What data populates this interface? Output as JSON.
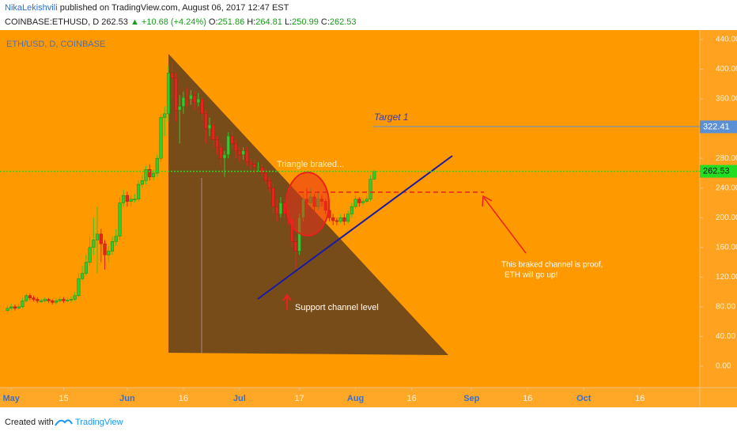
{
  "header": {
    "author": "NikaLekishvili",
    "published": "published on TradingView.com, August 06, 2017 12:47 EST",
    "symbol": "COINBASE:ETHUSD, D",
    "price": "262.53",
    "change": "▲ +10.68 (+4.24%)",
    "o_label": "O:",
    "o": "251.86",
    "h_label": "H:",
    "h": "264.81",
    "l_label": "L:",
    "l": "250.99",
    "c_label": "C:",
    "c": "262.53"
  },
  "footer": {
    "created": "Created with",
    "brand": "TradingView"
  },
  "chart_data": {
    "type": "candlestick",
    "title": "ETH/USD, D, COINBASE",
    "dates": [
      "2017-04-30",
      "2017-05-01",
      "2017-05-02",
      "2017-05-03",
      "2017-05-04",
      "2017-05-05",
      "2017-05-06",
      "2017-05-07",
      "2017-05-08",
      "2017-05-09",
      "2017-05-10",
      "2017-05-11",
      "2017-05-12",
      "2017-05-13",
      "2017-05-14",
      "2017-05-15",
      "2017-05-16",
      "2017-05-17",
      "2017-05-18",
      "2017-05-19",
      "2017-05-20",
      "2017-05-21",
      "2017-05-22",
      "2017-05-23",
      "2017-05-24",
      "2017-05-25",
      "2017-05-26",
      "2017-05-27",
      "2017-05-28",
      "2017-05-29",
      "2017-05-30",
      "2017-05-31",
      "2017-06-01",
      "2017-06-02",
      "2017-06-03",
      "2017-06-04",
      "2017-06-05",
      "2017-06-06",
      "2017-06-07",
      "2017-06-08",
      "2017-06-09",
      "2017-06-10",
      "2017-06-11",
      "2017-06-12",
      "2017-06-13",
      "2017-06-14",
      "2017-06-15",
      "2017-06-16",
      "2017-06-17",
      "2017-06-18",
      "2017-06-19",
      "2017-06-20",
      "2017-06-21",
      "2017-06-22",
      "2017-06-23",
      "2017-06-24",
      "2017-06-25",
      "2017-06-26",
      "2017-06-27",
      "2017-06-28",
      "2017-06-29",
      "2017-06-30",
      "2017-07-01",
      "2017-07-02",
      "2017-07-03",
      "2017-07-04",
      "2017-07-05",
      "2017-07-06",
      "2017-07-07",
      "2017-07-08",
      "2017-07-09",
      "2017-07-10",
      "2017-07-11",
      "2017-07-12",
      "2017-07-13",
      "2017-07-14",
      "2017-07-15",
      "2017-07-16",
      "2017-07-17",
      "2017-07-18",
      "2017-07-19",
      "2017-07-20",
      "2017-07-21",
      "2017-07-22",
      "2017-07-23",
      "2017-07-24",
      "2017-07-25",
      "2017-07-26",
      "2017-07-27",
      "2017-07-28",
      "2017-07-29",
      "2017-07-30",
      "2017-07-31",
      "2017-08-01",
      "2017-08-02",
      "2017-08-03",
      "2017-08-04",
      "2017-08-05",
      "2017-08-06"
    ],
    "open": [
      75,
      78,
      80,
      78,
      80,
      88,
      95,
      92,
      90,
      88,
      88,
      90,
      88,
      86,
      88,
      90,
      88,
      89,
      90,
      95,
      118,
      125,
      140,
      160,
      170,
      178,
      165,
      150,
      155,
      168,
      175,
      220,
      230,
      222,
      225,
      225,
      245,
      250,
      265,
      255,
      260,
      280,
      335,
      340,
      395,
      388,
      345,
      350,
      362,
      360,
      365,
      355,
      360,
      340,
      320,
      325,
      305,
      295,
      280,
      285,
      310,
      300,
      290,
      285,
      290,
      275,
      272,
      268,
      268,
      260,
      250,
      240,
      215,
      205,
      220,
      205,
      198,
      168,
      155,
      200,
      225,
      220,
      228,
      215,
      225,
      222,
      210,
      200,
      196,
      195,
      200,
      195,
      205,
      215,
      225,
      220,
      222,
      225,
      251.86
    ],
    "high": [
      82,
      84,
      83,
      84,
      92,
      98,
      98,
      95,
      93,
      91,
      93,
      92,
      90,
      91,
      94,
      93,
      92,
      94,
      100,
      125,
      135,
      150,
      175,
      200,
      215,
      185,
      170,
      162,
      175,
      185,
      228,
      238,
      235,
      230,
      232,
      250,
      258,
      270,
      272,
      265,
      285,
      340,
      350,
      405,
      410,
      395,
      365,
      370,
      375,
      372,
      370,
      368,
      362,
      345,
      335,
      330,
      310,
      300,
      290,
      315,
      318,
      305,
      295,
      295,
      295,
      280,
      278,
      275,
      272,
      265,
      255,
      245,
      225,
      228,
      225,
      210,
      200,
      172,
      205,
      232,
      240,
      240,
      232,
      235,
      230,
      226,
      215,
      205,
      200,
      205,
      205,
      210,
      220,
      230,
      228,
      226,
      230,
      258,
      264.81
    ],
    "low": [
      72,
      75,
      75,
      76,
      78,
      86,
      89,
      87,
      85,
      85,
      86,
      85,
      83,
      83,
      86,
      85,
      86,
      86,
      88,
      93,
      115,
      122,
      135,
      150,
      125,
      140,
      130,
      140,
      150,
      162,
      170,
      215,
      215,
      215,
      220,
      222,
      240,
      245,
      250,
      250,
      255,
      275,
      310,
      330,
      360,
      330,
      300,
      340,
      350,
      352,
      345,
      350,
      330,
      300,
      310,
      295,
      285,
      270,
      255,
      280,
      292,
      280,
      275,
      278,
      270,
      265,
      260,
      262,
      255,
      245,
      235,
      205,
      195,
      200,
      198,
      190,
      160,
      131,
      150,
      195,
      212,
      215,
      205,
      210,
      215,
      205,
      195,
      190,
      190,
      192,
      190,
      192,
      200,
      212,
      215,
      216,
      220,
      222,
      250.99
    ],
    "close": [
      78,
      80,
      78,
      80,
      88,
      95,
      92,
      90,
      88,
      88,
      90,
      88,
      86,
      88,
      90,
      88,
      89,
      90,
      95,
      118,
      125,
      140,
      160,
      170,
      178,
      165,
      150,
      155,
      168,
      175,
      220,
      230,
      222,
      225,
      225,
      245,
      250,
      265,
      255,
      260,
      280,
      335,
      340,
      395,
      388,
      345,
      350,
      362,
      360,
      365,
      355,
      360,
      340,
      320,
      325,
      305,
      295,
      280,
      285,
      310,
      300,
      290,
      285,
      290,
      275,
      272,
      268,
      268,
      260,
      250,
      240,
      215,
      205,
      220,
      205,
      198,
      168,
      155,
      200,
      225,
      220,
      228,
      215,
      225,
      222,
      210,
      200,
      196,
      195,
      200,
      195,
      205,
      215,
      225,
      220,
      222,
      225,
      251.85,
      262.53
    ],
    "up_color": "#2ecc2e",
    "down_color": "#e8231c",
    "xlim": [
      "2017-04-28",
      "2017-11-01"
    ],
    "xticks": [
      {
        "value": "2017-05-01",
        "label": "May"
      },
      {
        "value": "2017-05-15",
        "label": "15"
      },
      {
        "value": "2017-06-01",
        "label": "Jun"
      },
      {
        "value": "2017-06-16",
        "label": "16"
      },
      {
        "value": "2017-07-01",
        "label": "Jul"
      },
      {
        "value": "2017-07-17",
        "label": "17"
      },
      {
        "value": "2017-08-01",
        "label": "Aug"
      },
      {
        "value": "2017-08-16",
        "label": "16"
      },
      {
        "value": "2017-09-01",
        "label": "Sep"
      },
      {
        "value": "2017-09-16",
        "label": "16"
      },
      {
        "value": "2017-10-01",
        "label": "Oct"
      },
      {
        "value": "2017-10-16",
        "label": "16"
      }
    ],
    "ylim": [
      -28.8,
      452.8
    ],
    "yticks": [
      {
        "value": 0,
        "label": "0.00"
      },
      {
        "value": 40,
        "label": "40.00"
      },
      {
        "value": 80,
        "label": "80.00"
      },
      {
        "value": 120,
        "label": "120.00"
      },
      {
        "value": 160,
        "label": "160.00"
      },
      {
        "value": 200,
        "label": "200.00"
      },
      {
        "value": 240,
        "label": "240.00"
      },
      {
        "value": 280,
        "label": "280.00"
      },
      {
        "value": 320,
        "label": "320.00"
      },
      {
        "value": 360,
        "label": "360.00"
      },
      {
        "value": 400,
        "label": "400.00"
      },
      {
        "value": 440,
        "label": "440.00"
      }
    ],
    "price_lines": [
      {
        "value": 322.41,
        "color": "#5b8fd6"
      },
      {
        "value": 262.53,
        "color": "#22dd22"
      }
    ],
    "annotations": {
      "target": "Target 1",
      "triangle": "Triangle braked...",
      "support": "Support channel level",
      "proof_1": "This braked channel is proof,",
      "proof_2": "ETH will go up!"
    }
  }
}
